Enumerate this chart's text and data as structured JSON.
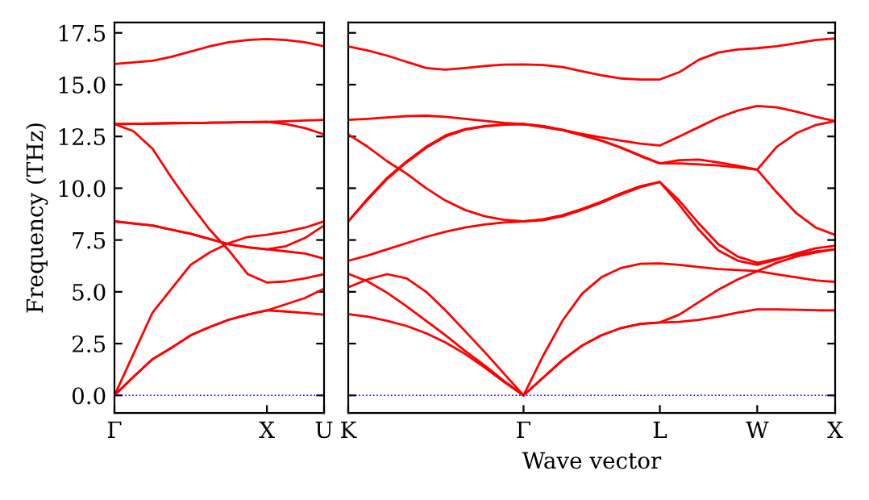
{
  "chart_data": [
    {
      "type": "line",
      "ylabel": "Frequency (THz)",
      "ylim": [
        -0.85,
        18.0
      ],
      "categories": [
        "Γ",
        null,
        null,
        null,
        null,
        null,
        null,
        null,
        "X",
        null,
        null,
        "U"
      ],
      "yticks": [
        {
          "value": 0,
          "label": "0.0"
        },
        {
          "value": 2.5,
          "label": "2.5"
        },
        {
          "value": 5,
          "label": "5.0"
        },
        {
          "value": 7.5,
          "label": "7.5"
        },
        {
          "value": 10,
          "label": "10.0"
        },
        {
          "value": 12.5,
          "label": "12.5"
        },
        {
          "value": 15,
          "label": "15.0"
        },
        {
          "value": 17.5,
          "label": "17.5"
        }
      ],
      "ref_lines": [
        {
          "axis": "y",
          "value": 0,
          "color": "#0000ff",
          "line_style": "dotted"
        }
      ],
      "grid": false,
      "marker": "none",
      "line_style": "solid",
      "series": [
        {
          "color": "#ff0000",
          "values": [
            16.0,
            16.07,
            16.15,
            16.35,
            16.6,
            16.85,
            17.05,
            17.15,
            17.2,
            17.15,
            17.05,
            16.85
          ]
        },
        {
          "color": "#ff0000",
          "values": [
            13.1,
            13.11,
            13.12,
            13.14,
            13.15,
            13.16,
            13.17,
            13.19,
            13.2,
            13.23,
            13.27,
            13.3
          ]
        },
        {
          "color": "#ff0000",
          "values": [
            13.1,
            13.11,
            13.12,
            13.14,
            13.15,
            13.16,
            13.17,
            13.19,
            13.2,
            13.1,
            12.9,
            12.6
          ]
        },
        {
          "color": "#ff0000",
          "values": [
            13.1,
            12.75,
            11.9,
            10.5,
            9.2,
            8.0,
            7.0,
            5.85,
            5.45,
            5.5,
            5.65,
            5.85
          ]
        },
        {
          "color": "#ff0000",
          "values": [
            8.4,
            8.3,
            8.2,
            8.0,
            7.8,
            7.55,
            7.3,
            7.15,
            7.05,
            6.95,
            6.85,
            6.6
          ]
        },
        {
          "color": "#ff0000",
          "values": [
            8.4,
            8.3,
            8.2,
            8.0,
            7.8,
            7.55,
            7.3,
            7.15,
            7.05,
            7.2,
            7.6,
            8.2
          ]
        },
        {
          "color": "#ff0000",
          "values": [
            0,
            2.0,
            4.0,
            5.15,
            6.3,
            6.9,
            7.35,
            7.65,
            7.75,
            7.9,
            8.1,
            8.4
          ]
        },
        {
          "color": "#ff0000",
          "values": [
            0,
            0.9,
            1.75,
            2.3,
            2.9,
            3.3,
            3.65,
            3.9,
            4.1,
            4.05,
            3.98,
            3.9
          ]
        },
        {
          "color": "#ff0000",
          "values": [
            0,
            0.9,
            1.75,
            2.3,
            2.9,
            3.3,
            3.65,
            3.9,
            4.1,
            4.4,
            4.7,
            5.15
          ]
        }
      ]
    },
    {
      "type": "line",
      "xlabel": "Wave vector",
      "ylim": [
        -0.85,
        18.0
      ],
      "tick_labels": "x",
      "categories": [
        "K",
        null,
        null,
        null,
        null,
        null,
        null,
        null,
        null,
        "Γ",
        null,
        null,
        null,
        null,
        null,
        null,
        "L",
        null,
        null,
        null,
        null,
        "W",
        null,
        null,
        null,
        "X"
      ],
      "yticks": [
        {
          "value": 0,
          "label": null
        },
        {
          "value": 2.5,
          "label": null
        },
        {
          "value": 5,
          "label": null
        },
        {
          "value": 7.5,
          "label": null
        },
        {
          "value": 10,
          "label": null
        },
        {
          "value": 12.5,
          "label": null
        },
        {
          "value": 15,
          "label": null
        },
        {
          "value": 17.5,
          "label": null
        }
      ],
      "ref_lines": [
        {
          "axis": "y",
          "value": 0,
          "color": "#0000ff",
          "line_style": "dotted"
        }
      ],
      "grid": false,
      "marker": "none",
      "line_style": "solid",
      "series": [
        {
          "color": "#ff0000",
          "values": [
            16.84,
            16.65,
            16.4,
            16.1,
            15.8,
            15.72,
            15.8,
            15.9,
            15.97,
            15.98,
            15.95,
            15.85,
            15.65,
            15.45,
            15.3,
            15.25,
            15.25,
            15.6,
            16.2,
            16.55,
            16.7,
            16.76,
            16.85,
            17.0,
            17.15,
            17.23
          ]
        },
        {
          "color": "#ff0000",
          "values": [
            13.3,
            13.35,
            13.42,
            13.48,
            13.5,
            13.45,
            13.35,
            13.25,
            13.15,
            13.1,
            12.95,
            12.8,
            12.62,
            12.45,
            12.3,
            12.15,
            12.06,
            12.5,
            12.95,
            13.4,
            13.75,
            13.97,
            13.9,
            13.7,
            13.45,
            13.24
          ]
        },
        {
          "color": "#ff0000",
          "values": [
            12.6,
            12.0,
            11.3,
            10.7,
            10.0,
            9.4,
            8.95,
            8.65,
            8.47,
            8.4,
            8.45,
            8.65,
            8.95,
            9.3,
            9.7,
            10.05,
            10.3,
            9.2,
            8.0,
            7.0,
            6.5,
            6.3,
            6.55,
            6.85,
            7.1,
            7.23
          ]
        },
        {
          "color": "#ff0000",
          "values": [
            8.4,
            9.5,
            10.5,
            11.3,
            12.0,
            12.55,
            12.85,
            13.0,
            13.08,
            13.1,
            13.0,
            12.8,
            12.55,
            12.3,
            11.95,
            11.55,
            11.2,
            11.2,
            11.15,
            11.1,
            11.0,
            10.9,
            9.8,
            8.8,
            8.1,
            7.75
          ]
        },
        {
          "color": "#ff0000",
          "values": [
            8.4,
            9.45,
            10.45,
            11.25,
            11.95,
            12.5,
            12.82,
            12.98,
            13.07,
            13.1,
            13.0,
            12.82,
            12.6,
            12.3,
            11.97,
            11.58,
            11.2,
            11.35,
            11.38,
            11.25,
            11.08,
            10.9,
            12.0,
            12.65,
            13.05,
            13.24
          ]
        },
        {
          "color": "#ff0000",
          "values": [
            6.5,
            6.75,
            7.05,
            7.35,
            7.65,
            7.9,
            8.1,
            8.25,
            8.35,
            8.4,
            8.5,
            8.7,
            9.0,
            9.35,
            9.75,
            10.1,
            10.3,
            9.4,
            8.3,
            7.3,
            6.7,
            6.4,
            6.6,
            6.8,
            6.95,
            7.05
          ]
        },
        {
          "color": "#ff0000",
          "values": [
            5.22,
            5.6,
            5.85,
            5.65,
            5.0,
            4.1,
            3.1,
            2.1,
            1.05,
            0,
            1.9,
            3.6,
            4.9,
            5.7,
            6.15,
            6.35,
            6.37,
            6.3,
            6.2,
            6.1,
            6.05,
            6.0,
            5.85,
            5.7,
            5.55,
            5.48
          ]
        },
        {
          "color": "#ff0000",
          "values": [
            5.87,
            5.5,
            4.95,
            4.3,
            3.6,
            2.9,
            2.15,
            1.45,
            0.7,
            0,
            0.85,
            1.7,
            2.4,
            2.9,
            3.25,
            3.45,
            3.52,
            3.9,
            4.5,
            5.1,
            5.6,
            6.0,
            6.4,
            6.7,
            6.9,
            7.05
          ]
        },
        {
          "color": "#ff0000",
          "values": [
            3.92,
            3.8,
            3.6,
            3.35,
            3.0,
            2.55,
            2.0,
            1.35,
            0.65,
            0,
            0.85,
            1.7,
            2.4,
            2.9,
            3.25,
            3.45,
            3.52,
            3.55,
            3.65,
            3.8,
            4.0,
            4.15,
            4.15,
            4.13,
            4.11,
            4.1
          ]
        }
      ]
    }
  ]
}
